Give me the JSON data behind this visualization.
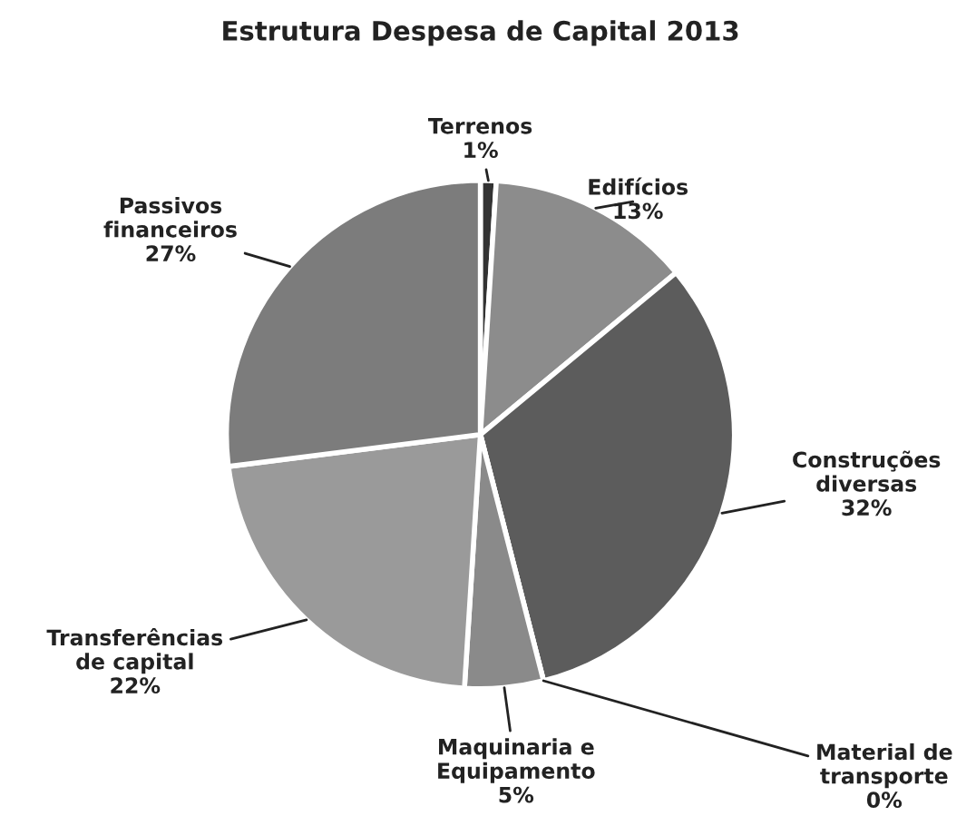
{
  "chart_data": {
    "type": "pie",
    "title": "Estrutura Despesa de Capital 2013",
    "categories": [
      "Terrenos",
      "Edifícios",
      "Construções diversas",
      "Material de transporte",
      "Maquinaria e Equipamento",
      "Transferências de capital",
      "Passivos financeiros"
    ],
    "values": [
      1,
      13,
      32,
      0,
      5,
      22,
      27
    ],
    "value_labels": [
      "1%",
      "13%",
      "32%",
      "0%",
      "5%",
      "22%",
      "27%"
    ],
    "colors": [
      "#333333",
      "#8c8c8c",
      "#5c5c5c",
      "#6a6a6a",
      "#8a8a8a",
      "#9a9a9a",
      "#7c7c7c"
    ],
    "legend": false
  }
}
